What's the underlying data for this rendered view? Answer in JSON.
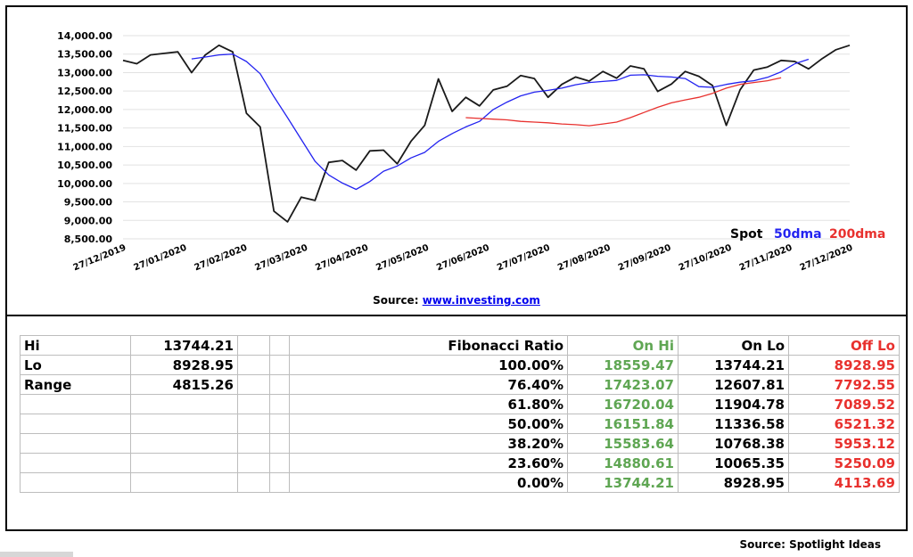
{
  "chart_data": {
    "type": "line",
    "x_labels": [
      "27/12/2019",
      "27/01/2020",
      "27/02/2020",
      "27/03/2020",
      "27/04/2020",
      "27/05/2020",
      "27/06/2020",
      "27/07/2020",
      "27/08/2020",
      "27/09/2020",
      "27/10/2020",
      "27/11/2020",
      "27/12/2020"
    ],
    "y_ticks": [
      "8,500.00",
      "9,000.00",
      "9,500.00",
      "10,000.00",
      "10,500.00",
      "11,000.00",
      "11,500.00",
      "12,000.00",
      "12,500.00",
      "13,000.00",
      "13,500.00",
      "14,000.00"
    ],
    "ylim": [
      8500,
      14000
    ],
    "grid": true,
    "legend_position": "bottom-right",
    "series": [
      {
        "name": "Spot",
        "color": "#1a1a1a",
        "values": [
          13330,
          13240,
          13480,
          13520,
          13560,
          13000,
          13480,
          13740,
          13560,
          11900,
          11530,
          9250,
          8960,
          9630,
          9540,
          10570,
          10620,
          10360,
          10880,
          10900,
          10530,
          11140,
          11570,
          12830,
          11950,
          12330,
          12100,
          12530,
          12630,
          12920,
          12840,
          12330,
          12680,
          12880,
          12770,
          13030,
          12850,
          13180,
          13100,
          12490,
          12690,
          13030,
          12900,
          12650,
          11570,
          12530,
          13070,
          13150,
          13330,
          13300,
          13100,
          13380,
          13620,
          13740
        ]
      },
      {
        "name": "50dma",
        "color": "#2323f0",
        "start": 5,
        "values": [
          13370,
          13420,
          13480,
          13500,
          13300,
          12970,
          12350,
          11780,
          11190,
          10600,
          10230,
          10010,
          9840,
          10050,
          10330,
          10470,
          10690,
          10840,
          11140,
          11350,
          11530,
          11680,
          12000,
          12200,
          12370,
          12470,
          12520,
          12580,
          12670,
          12730,
          12760,
          12790,
          12930,
          12940,
          12900,
          12880,
          12840,
          12620,
          12600,
          12680,
          12740,
          12780,
          12870,
          13020,
          13240,
          13360
        ]
      },
      {
        "name": "200dma",
        "color": "#e8312e",
        "start": 25,
        "values": [
          11780,
          11760,
          11740,
          11720,
          11680,
          11660,
          11640,
          11610,
          11590,
          11560,
          11610,
          11660,
          11780,
          11920,
          12060,
          12180,
          12260,
          12330,
          12440,
          12580,
          12680,
          12730,
          12780,
          12860
        ]
      }
    ]
  },
  "legend": {
    "spot": "Spot",
    "dma50": "50dma",
    "dma200": "200dma"
  },
  "chart_source": {
    "label": "Source:",
    "link": "www.investing.com"
  },
  "table": {
    "summary": [
      {
        "label": "Hi",
        "value": "13744.21"
      },
      {
        "label": "Lo",
        "value": "8928.95"
      },
      {
        "label": "Range",
        "value": "4815.26"
      }
    ],
    "headers": {
      "ratio": "Fibonacci  Ratio",
      "on_hi": "On Hi",
      "on_lo": "On Lo",
      "off_lo": "Off Lo"
    },
    "rows": [
      {
        "ratio": "100.00%",
        "on_hi": "18559.47",
        "on_lo": "13744.21",
        "off_lo": "8928.95"
      },
      {
        "ratio": "76.40%",
        "on_hi": "17423.07",
        "on_lo": "12607.81",
        "off_lo": "7792.55"
      },
      {
        "ratio": "61.80%",
        "on_hi": "16720.04",
        "on_lo": "11904.78",
        "off_lo": "7089.52"
      },
      {
        "ratio": "50.00%",
        "on_hi": "16151.84",
        "on_lo": "11336.58",
        "off_lo": "6521.32"
      },
      {
        "ratio": "38.20%",
        "on_hi": "15583.64",
        "on_lo": "10768.38",
        "off_lo": "5953.12"
      },
      {
        "ratio": "23.60%",
        "on_hi": "14880.61",
        "on_lo": "10065.35",
        "off_lo": "5250.09"
      },
      {
        "ratio": "0.00%",
        "on_hi": "13744.21",
        "on_lo": "8928.95",
        "off_lo": "4113.69"
      }
    ]
  },
  "footer_source": "Source: Spotlight Ideas"
}
